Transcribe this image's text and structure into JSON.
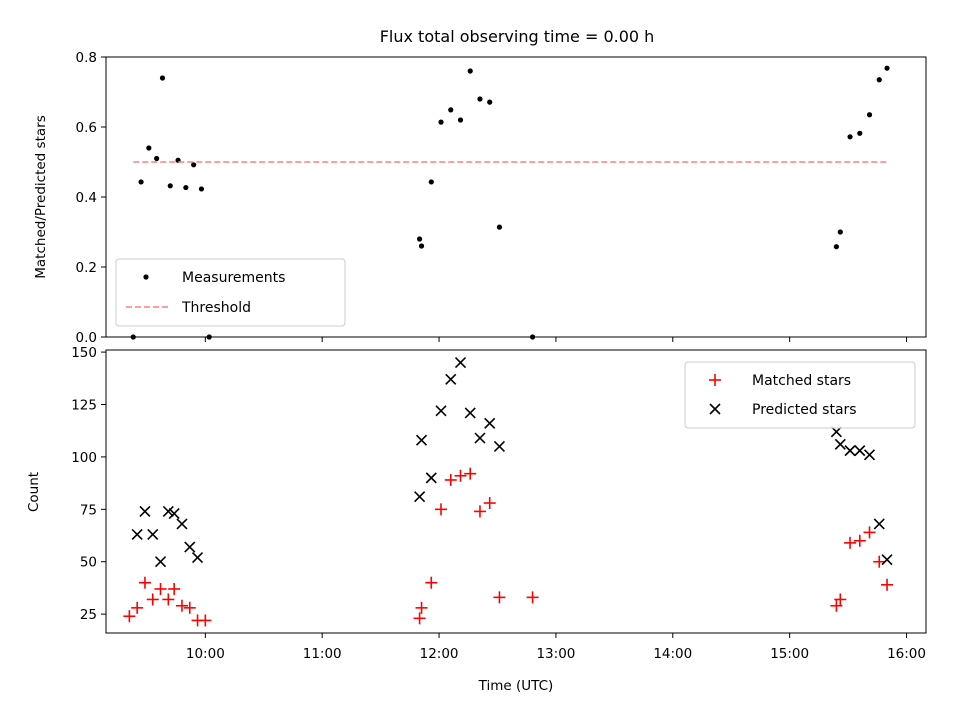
{
  "title": "Flux total observing time = 0.00 h",
  "chart_data": [
    {
      "type": "scatter",
      "ylabel": "Matched/Predicted stars",
      "xlabel": "",
      "xlim": [
        "09:09",
        "16:10"
      ],
      "ylim": [
        0,
        0.8
      ],
      "yticks": [
        "0.0",
        "0.2",
        "0.4",
        "0.6",
        "0.8"
      ],
      "legend_position": "lower-left",
      "series": [
        {
          "name": "Measurements",
          "kind": "points",
          "color": "#000000",
          "points": [
            [
              "09:23",
              0.0
            ],
            [
              "09:27",
              0.443
            ],
            [
              "09:31",
              0.54
            ],
            [
              "09:35",
              0.51
            ],
            [
              "09:38",
              0.74
            ],
            [
              "09:42",
              0.432
            ],
            [
              "09:46",
              0.505
            ],
            [
              "09:50",
              0.427
            ],
            [
              "09:54",
              0.492
            ],
            [
              "09:58",
              0.423
            ],
            [
              "10:02",
              0.0
            ],
            [
              "11:50",
              0.28
            ],
            [
              "11:51",
              0.26
            ],
            [
              "11:56",
              0.443
            ],
            [
              "12:01",
              0.614
            ],
            [
              "12:06",
              0.649
            ],
            [
              "12:11",
              0.62
            ],
            [
              "12:16",
              0.76
            ],
            [
              "12:21",
              0.68
            ],
            [
              "12:26",
              0.671
            ],
            [
              "12:31",
              0.314
            ],
            [
              "12:48",
              0.0
            ],
            [
              "15:24",
              0.258
            ],
            [
              "15:26",
              0.3
            ],
            [
              "15:31",
              0.572
            ],
            [
              "15:36",
              0.582
            ],
            [
              "15:41",
              0.635
            ],
            [
              "15:46",
              0.735
            ],
            [
              "15:50",
              0.768
            ]
          ]
        },
        {
          "name": "Threshold",
          "kind": "dashed-line",
          "color": "#ff7f7f",
          "points": [
            [
              "09:23",
              0.5
            ],
            [
              "15:50",
              0.5
            ]
          ]
        }
      ]
    },
    {
      "type": "scatter",
      "ylabel": "Count",
      "xlabel": "Time (UTC)",
      "xlim": [
        "09:09",
        "16:10"
      ],
      "ylim": [
        16,
        151
      ],
      "yticks": [
        "25",
        "50",
        "75",
        "100",
        "125",
        "150"
      ],
      "xticks": [
        "10:00",
        "11:00",
        "12:00",
        "13:00",
        "14:00",
        "15:00",
        "16:00"
      ],
      "legend_position": "upper-right",
      "series": [
        {
          "name": "Matched stars",
          "marker": "plus",
          "color": "#ff0000",
          "points": [
            [
              "09:21",
              24
            ],
            [
              "09:25",
              28
            ],
            [
              "09:29",
              40
            ],
            [
              "09:33",
              32
            ],
            [
              "09:37",
              37
            ],
            [
              "09:41",
              32
            ],
            [
              "09:44",
              37
            ],
            [
              "09:48",
              29
            ],
            [
              "09:52",
              28
            ],
            [
              "09:56",
              22
            ],
            [
              "10:00",
              22
            ],
            [
              "11:50",
              23
            ],
            [
              "11:51",
              28
            ],
            [
              "11:56",
              40
            ],
            [
              "12:01",
              75
            ],
            [
              "12:06",
              89
            ],
            [
              "12:11",
              91
            ],
            [
              "12:16",
              92
            ],
            [
              "12:21",
              74
            ],
            [
              "12:26",
              78
            ],
            [
              "12:31",
              33
            ],
            [
              "12:48",
              33
            ],
            [
              "15:24",
              29
            ],
            [
              "15:26",
              32
            ],
            [
              "15:31",
              59
            ],
            [
              "15:36",
              60
            ],
            [
              "15:41",
              64
            ],
            [
              "15:46",
              50
            ],
            [
              "15:50",
              39
            ]
          ]
        },
        {
          "name": "Predicted stars",
          "marker": "x",
          "color": "#000000",
          "points": [
            [
              "09:25",
              63
            ],
            [
              "09:29",
              74
            ],
            [
              "09:33",
              63
            ],
            [
              "09:37",
              50
            ],
            [
              "09:41",
              74
            ],
            [
              "09:44",
              73
            ],
            [
              "09:48",
              68
            ],
            [
              "09:52",
              57
            ],
            [
              "09:56",
              52
            ],
            [
              "11:50",
              81
            ],
            [
              "11:51",
              108
            ],
            [
              "11:56",
              90
            ],
            [
              "12:01",
              122
            ],
            [
              "12:06",
              137
            ],
            [
              "12:11",
              145
            ],
            [
              "12:16",
              121
            ],
            [
              "12:21",
              109
            ],
            [
              "12:26",
              116
            ],
            [
              "12:31",
              105
            ],
            [
              "15:24",
              112
            ],
            [
              "15:26",
              106
            ],
            [
              "15:31",
              103
            ],
            [
              "15:36",
              103
            ],
            [
              "15:41",
              101
            ],
            [
              "15:46",
              68
            ],
            [
              "15:50",
              51
            ]
          ]
        }
      ]
    }
  ]
}
